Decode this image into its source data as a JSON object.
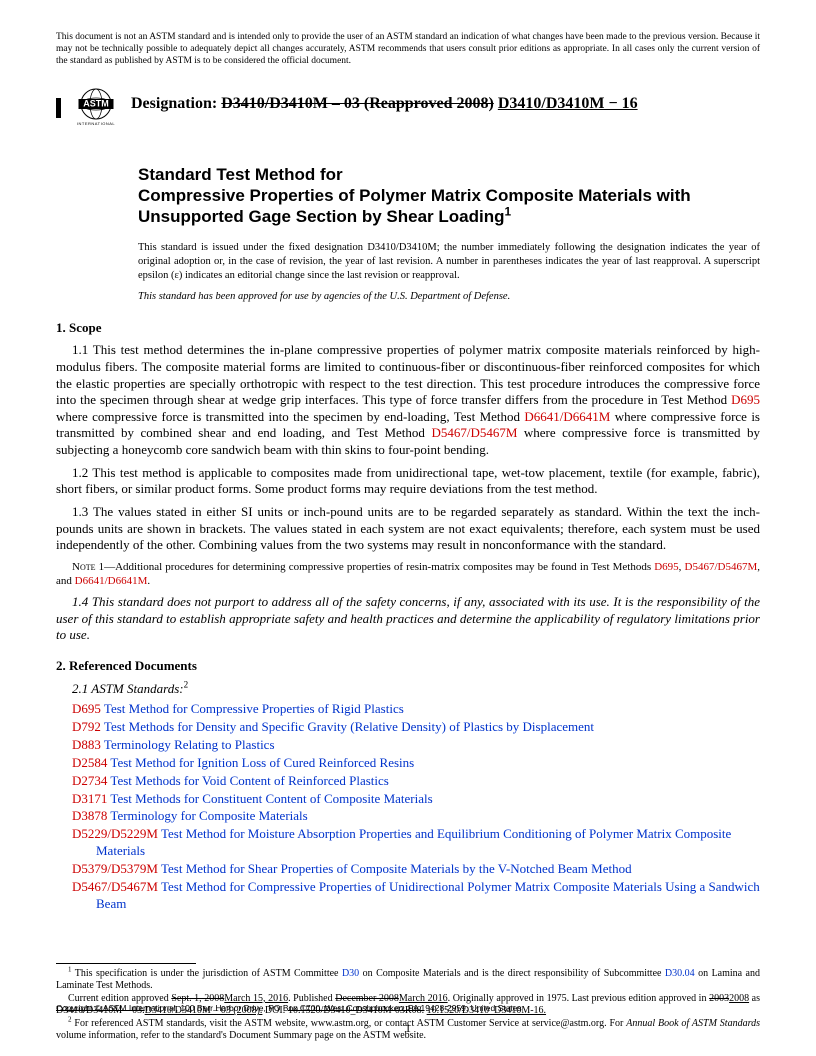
{
  "disclaimer": "This document is not an ASTM standard and is intended only to provide the user of an ASTM standard an indication of what changes have been made to the previous version. Because it may not be technically possible to adequately depict all changes accurately, ASTM recommends that users consult prior editions as appropriate. In all cases only the current version of the standard as published by ASTM is to be considered the official document.",
  "designation_label": "Designation:",
  "designation_old": "D3410/D3410M – 03 (Reapproved 2008)",
  "designation_new": "D3410/D3410M − 16",
  "title_pre": "Standard Test Method for",
  "title_main": "Compressive Properties of Polymer Matrix Composite Materials with Unsupported Gage Section by Shear Loading",
  "issued_note": "This standard is issued under the fixed designation D3410/D3410M; the number immediately following the designation indicates the year of original adoption or, in the case of revision, the year of last revision. A number in parentheses indicates the year of last reapproval. A superscript epsilon (ε) indicates an editorial change since the last revision or reapproval.",
  "dod_note": "This standard has been approved for use by agencies of the U.S. Department of Defense.",
  "scope_head": "1. Scope",
  "refdoc_head": "2. Referenced Documents",
  "astm_sub": "2.1 ASTM Standards:",
  "note1_label": "Note 1",
  "refs": [
    {
      "code": "D695",
      "title": "Test Method for Compressive Properties of Rigid Plastics"
    },
    {
      "code": "D792",
      "title": "Test Methods for Density and Specific Gravity (Relative Density) of Plastics by Displacement"
    },
    {
      "code": "D883",
      "title": "Terminology Relating to Plastics"
    },
    {
      "code": "D2584",
      "title": "Test Method for Ignition Loss of Cured Reinforced Resins"
    },
    {
      "code": "D2734",
      "title": "Test Methods for Void Content of Reinforced Plastics"
    },
    {
      "code": "D3171",
      "title": "Test Methods for Constituent Content of Composite Materials"
    },
    {
      "code": "D3878",
      "title": "Terminology for Composite Materials"
    },
    {
      "code": "D5229/D5229M",
      "title": "Test Method for Moisture Absorption Properties and Equilibrium Conditioning of Polymer Matrix Composite Materials"
    },
    {
      "code": "D5379/D5379M",
      "title": "Test Method for Shear Properties of Composite Materials by the V-Notched Beam Method"
    },
    {
      "code": "D5467/D5467M",
      "title": "Test Method for Compressive Properties of Unidirectional Polymer Matrix Composite Materials Using a Sandwich Beam"
    }
  ],
  "copyright": "Copyright © ASTM International, 100 Barr Harbor Drive, PO Box C700, West Conshohocken, PA 19428-2959. United States",
  "pagenum": "1",
  "colors": {
    "red": "#cc0000",
    "blue": "#0033cc",
    "text": "#000000",
    "bg": "#ffffff"
  }
}
